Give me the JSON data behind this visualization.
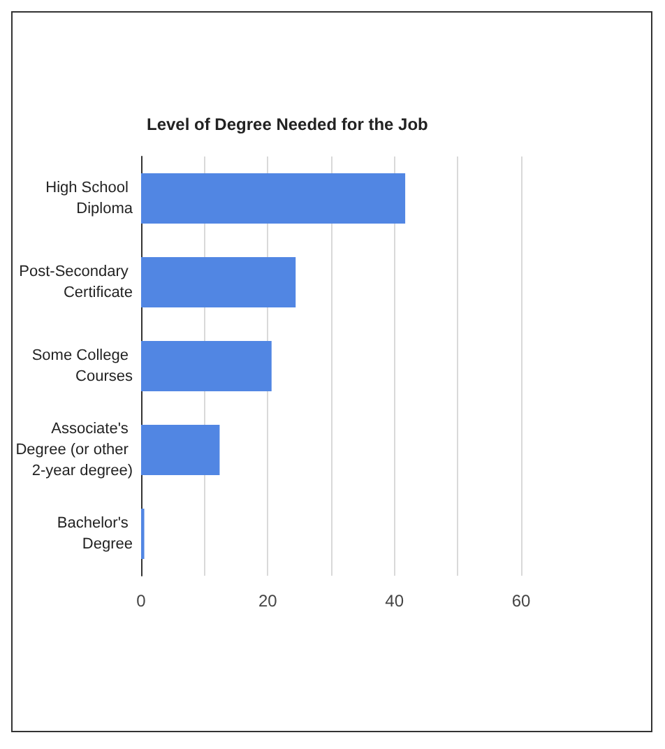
{
  "chart_data": {
    "type": "bar",
    "orientation": "horizontal",
    "title": "Level of Degree Needed for the Job",
    "categories": [
      "High School Diploma",
      "Post-Secondary Certificate",
      "Some College Courses",
      "Associate's Degree (or other 2-year degree)",
      "Bachelor's Degree"
    ],
    "values": [
      41.7,
      24.4,
      20.6,
      12.4,
      0.5
    ],
    "color": "#5186e3",
    "xlim": [
      0,
      60
    ],
    "xticks": [
      0,
      {
        "value": 10,
        "label": null
      },
      20,
      {
        "value": 30,
        "label": null
      },
      40,
      {
        "value": 50,
        "label": null
      },
      60
    ],
    "grid": "x"
  }
}
